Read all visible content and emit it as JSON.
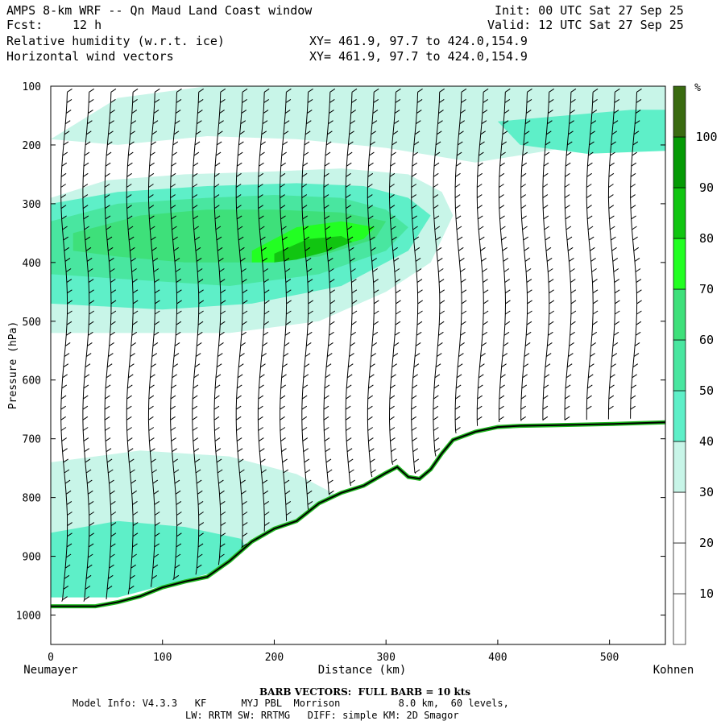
{
  "header": {
    "title": "AMPS 8-km WRF -- Qn Maud Land Coast window",
    "init": "Init: 00 UTC Sat 27 Sep 25",
    "fcst_label": "Fcst:",
    "fcst_value": "12 h",
    "valid": "Valid: 12 UTC Sat 27 Sep 25",
    "field1": "Relative humidity (w.r.t. ice)",
    "field2": "Horizontal wind vectors",
    "xy1": "XY= 461.9, 97.7 to 424.0,154.9",
    "xy2": "XY= 461.9, 97.7 to 424.0,154.9"
  },
  "footer": {
    "barb": "BARB VECTORS:  FULL BARB = 10 kts",
    "model_line1": "Model Info: V4.3.3   KF      MYJ PBL  Morrison          8.0 km,  60 levels,",
    "model_line2": "LW: RRTM SW: RRTMG   DIFF: simple KM: 2D Smagor"
  },
  "colors": {
    "rh_levels": [
      "#ffffff",
      "#ffffff",
      "#ffffff",
      "#c8f5e8",
      "#5eefc8",
      "#49e6a0",
      "#3ee07a",
      "#22ff22",
      "#11c511",
      "#059a05",
      "#3a6b10"
    ],
    "terrain_line": "#000000"
  },
  "chart_data": {
    "type": "heatmap",
    "title": "Relative humidity (w.r.t. ice) and horizontal wind vectors",
    "xlabel": "Distance (km)",
    "ylabel": "Pressure (hPa)",
    "xlim": [
      0,
      550
    ],
    "ylim": [
      1050,
      100
    ],
    "xticks": [
      "0",
      "100",
      "200",
      "300",
      "400",
      "500"
    ],
    "yticks": [
      "100",
      "200",
      "300",
      "400",
      "500",
      "600",
      "700",
      "800",
      "900",
      "1000"
    ],
    "x_start_label": "Neumayer",
    "x_end_label": "Kohnen",
    "colorbar": {
      "unit": "%",
      "levels": [
        "10",
        "20",
        "30",
        "40",
        "50",
        "60",
        "70",
        "80",
        "90",
        "100"
      ]
    },
    "terrain_profile": {
      "x": [
        0,
        40,
        60,
        80,
        100,
        120,
        140,
        160,
        180,
        200,
        220,
        240,
        260,
        280,
        300,
        310,
        320,
        330,
        340,
        350,
        360,
        380,
        400,
        420,
        450,
        500,
        550
      ],
      "p": [
        985,
        985,
        978,
        968,
        953,
        943,
        935,
        908,
        875,
        853,
        840,
        810,
        792,
        780,
        758,
        748,
        765,
        768,
        752,
        725,
        702,
        688,
        680,
        678,
        677,
        675,
        672
      ]
    },
    "rh_regions": [
      {
        "level": 3,
        "x": [
          0,
          60,
          140,
          220,
          300,
          380,
          460,
          550,
          550,
          460,
          380,
          300,
          220,
          140,
          60,
          0
        ],
        "p": [
          190,
          120,
          100,
          100,
          100,
          100,
          100,
          100,
          200,
          205,
          230,
          205,
          190,
          185,
          200,
          190
        ]
      },
      {
        "level": 3,
        "x": [
          0,
          50,
          120,
          200,
          260,
          320,
          350,
          360,
          340,
          300,
          240,
          160,
          80,
          0
        ],
        "p": [
          290,
          260,
          250,
          245,
          240,
          250,
          280,
          320,
          400,
          450,
          500,
          520,
          520,
          520
        ]
      },
      {
        "level": 4,
        "x": [
          0,
          60,
          140,
          220,
          280,
          320,
          340,
          320,
          260,
          180,
          100,
          0
        ],
        "p": [
          300,
          280,
          270,
          265,
          270,
          290,
          320,
          380,
          440,
          470,
          480,
          470
        ]
      },
      {
        "level": 5,
        "x": [
          0,
          60,
          140,
          200,
          260,
          300,
          320,
          300,
          240,
          160,
          80,
          0
        ],
        "p": [
          330,
          300,
          290,
          285,
          290,
          310,
          340,
          380,
          420,
          440,
          430,
          420
        ]
      },
      {
        "level": 6,
        "x": [
          20,
          80,
          140,
          200,
          260,
          300,
          290,
          240,
          180,
          120,
          60,
          20
        ],
        "p": [
          350,
          320,
          310,
          310,
          315,
          330,
          360,
          390,
          400,
          400,
          390,
          380
        ]
      },
      {
        "level": 7,
        "x": [
          180,
          220,
          260,
          290,
          280,
          240,
          200,
          180
        ],
        "p": [
          380,
          340,
          330,
          340,
          360,
          380,
          400,
          400
        ]
      },
      {
        "level": 8,
        "x": [
          200,
          230,
          260,
          270,
          250,
          220,
          200
        ],
        "p": [
          385,
          360,
          355,
          365,
          380,
          395,
          400
        ]
      },
      {
        "level": 3,
        "x": [
          0,
          80,
          160,
          220,
          260,
          240,
          200,
          160,
          120,
          60,
          0
        ],
        "p": [
          740,
          720,
          730,
          760,
          800,
          850,
          880,
          900,
          930,
          960,
          960
        ]
      },
      {
        "level": 4,
        "x": [
          0,
          60,
          120,
          170,
          180,
          140,
          100,
          60,
          0
        ],
        "p": [
          860,
          840,
          850,
          870,
          900,
          930,
          950,
          970,
          970
        ]
      },
      {
        "level": 4,
        "x": [
          400,
          460,
          520,
          550,
          550,
          480,
          420
        ],
        "p": [
          160,
          150,
          140,
          140,
          210,
          215,
          200
        ]
      }
    ]
  }
}
